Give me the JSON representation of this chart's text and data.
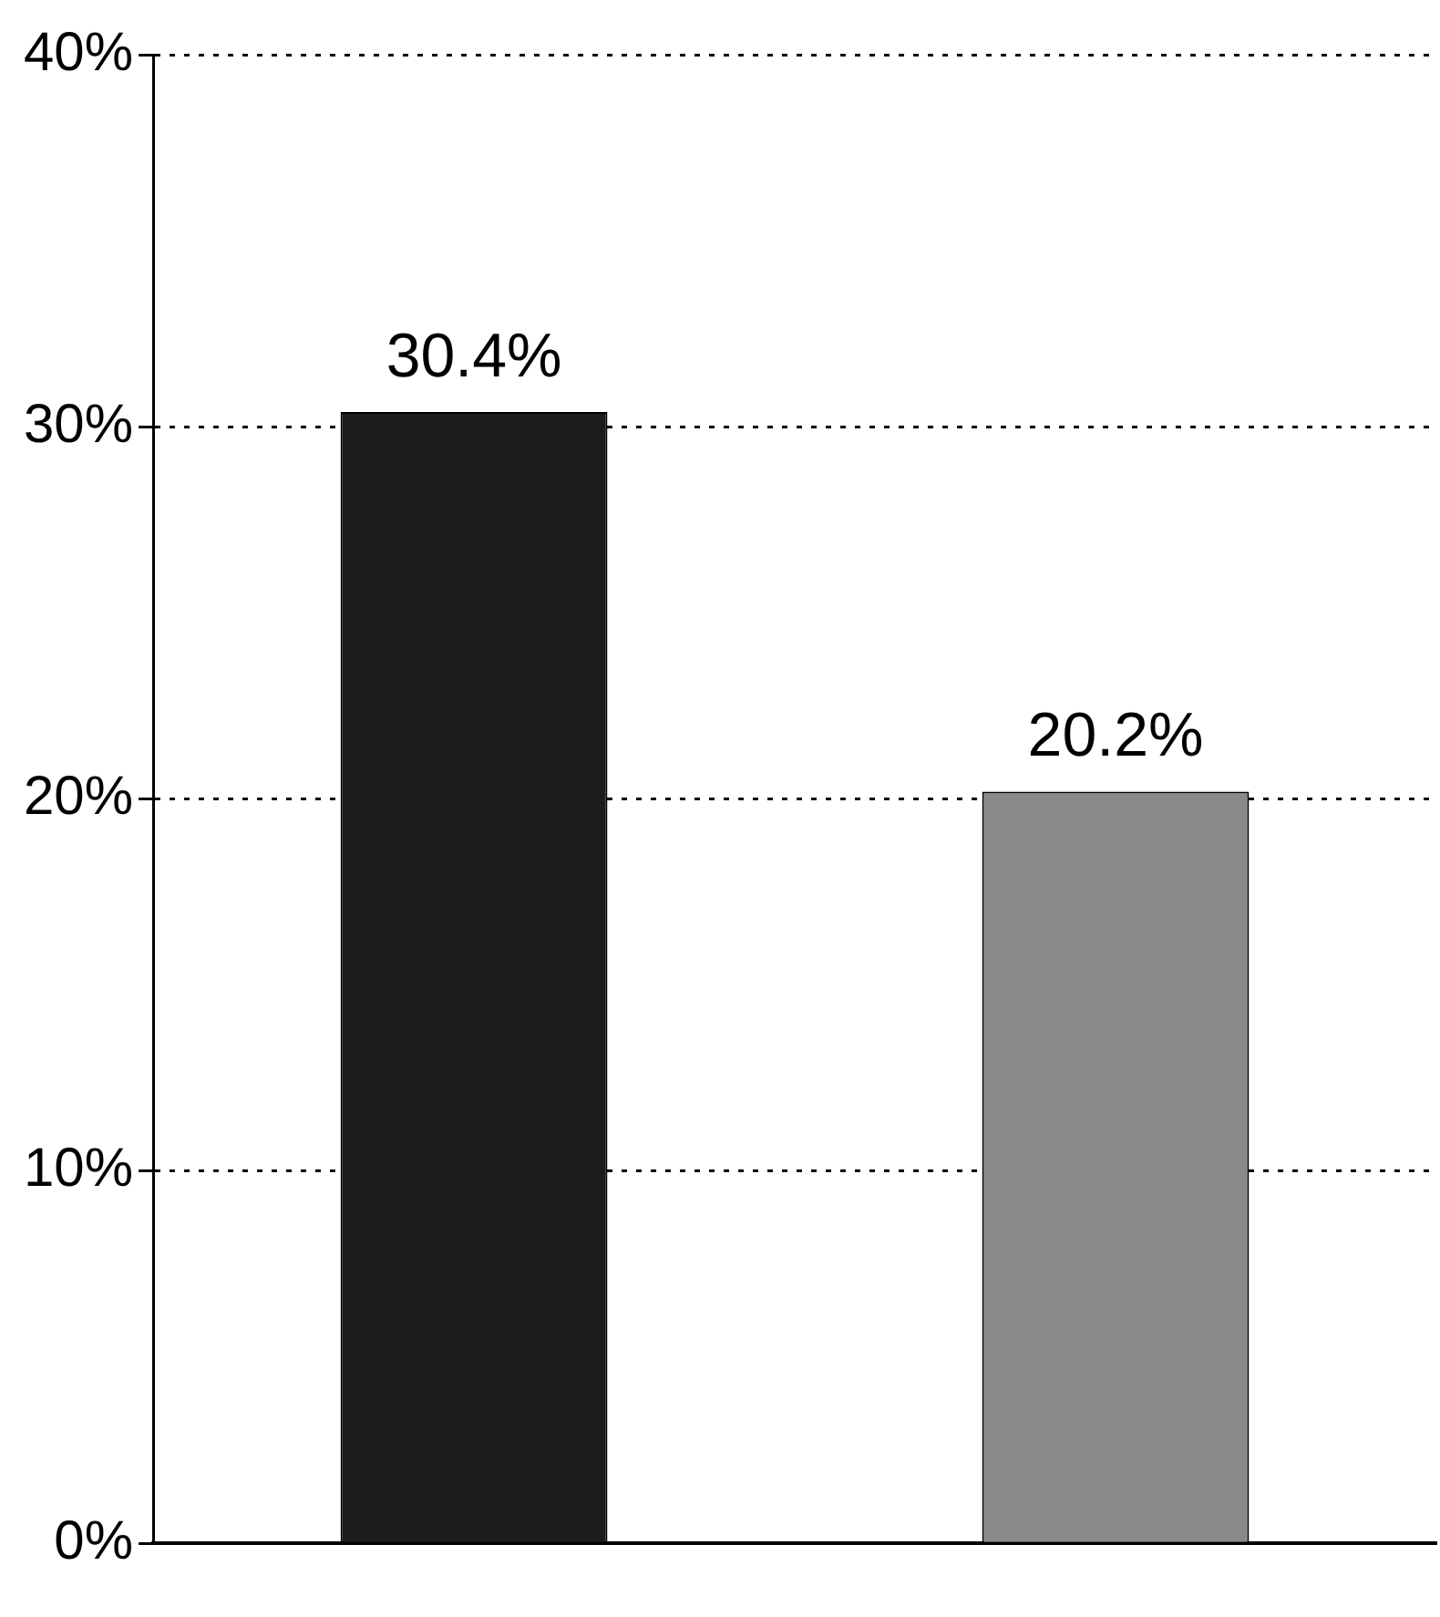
{
  "chart_data": {
    "type": "bar",
    "categories": [
      null,
      null
    ],
    "series": [
      {
        "colors": [
          "#1c1c1c",
          "#8a8a8a"
        ],
        "values": [
          30.4,
          20.2
        ]
      }
    ],
    "ylim": [
      0,
      40
    ],
    "yticks": [
      {
        "value": 0,
        "label": "0%"
      },
      {
        "value": 10,
        "label": "10%"
      },
      {
        "value": 20,
        "label": "20%"
      },
      {
        "value": 30,
        "label": "30%"
      },
      {
        "value": 40,
        "label": "40%"
      }
    ],
    "grid": "y",
    "line_style": "dotted",
    "legend": false,
    "value_labels": [
      "30.4%",
      "20.2%"
    ]
  }
}
